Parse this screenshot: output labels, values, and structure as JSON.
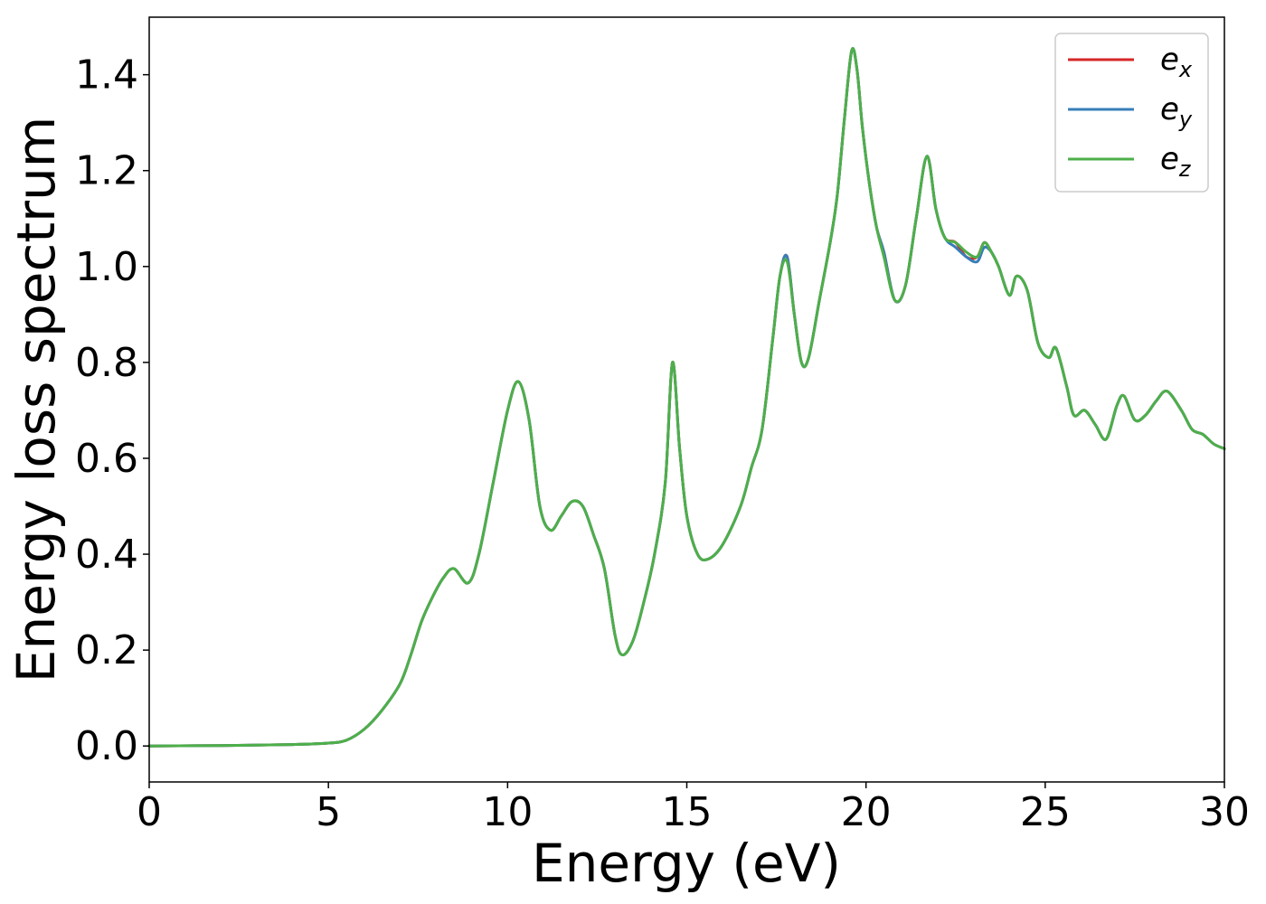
{
  "chart_data": {
    "type": "line",
    "xlabel": "Energy (eV)",
    "ylabel": "Energy loss spectrum",
    "xlim": [
      0,
      30
    ],
    "ylim": [
      -0.075,
      1.52
    ],
    "xticks": [
      0,
      5,
      10,
      15,
      20,
      25,
      30
    ],
    "xtick_labels": [
      "0",
      "5",
      "10",
      "15",
      "20",
      "25",
      "30"
    ],
    "yticks": [
      0.0,
      0.2,
      0.4,
      0.6,
      0.8,
      1.0,
      1.2,
      1.4
    ],
    "ytick_labels": [
      "0.0",
      "0.2",
      "0.4",
      "0.6",
      "0.8",
      "1.0",
      "1.2",
      "1.4"
    ],
    "grid": false,
    "legend_position": "top-right",
    "series": [
      {
        "name": "e_x",
        "legend": {
          "base": "e",
          "sub": "x"
        },
        "color": "#d62728",
        "x": [
          0,
          2,
          4,
          5,
          5.5,
          6,
          6.5,
          7,
          7.3,
          7.6,
          7.9,
          8.2,
          8.5,
          8.9,
          9.2,
          9.6,
          10.0,
          10.3,
          10.6,
          10.9,
          11.2,
          11.5,
          11.8,
          12.1,
          12.4,
          12.7,
          13.0,
          13.2,
          13.5,
          13.8,
          14.1,
          14.4,
          14.6,
          14.8,
          15.0,
          15.3,
          15.6,
          16.0,
          16.5,
          16.8,
          17.1,
          17.4,
          17.6,
          17.8,
          18.0,
          18.2,
          18.4,
          18.7,
          19.0,
          19.2,
          19.4,
          19.6,
          19.75,
          19.9,
          20.1,
          20.3,
          20.5,
          20.8,
          21.1,
          21.4,
          21.7,
          21.95,
          22.2,
          22.5,
          22.8,
          23.1,
          23.3,
          23.5,
          23.7,
          24.0,
          24.2,
          24.5,
          24.8,
          25.1,
          25.3,
          25.6,
          25.8,
          26.1,
          26.4,
          26.7,
          27.0,
          27.2,
          27.5,
          27.8,
          28.1,
          28.4,
          28.8,
          29.1,
          29.4,
          29.7,
          30.0
        ],
        "y": [
          0.0,
          0.001,
          0.003,
          0.006,
          0.012,
          0.035,
          0.075,
          0.13,
          0.19,
          0.26,
          0.31,
          0.35,
          0.37,
          0.34,
          0.4,
          0.55,
          0.7,
          0.76,
          0.68,
          0.5,
          0.45,
          0.48,
          0.51,
          0.5,
          0.44,
          0.37,
          0.23,
          0.19,
          0.22,
          0.3,
          0.4,
          0.55,
          0.8,
          0.62,
          0.48,
          0.4,
          0.39,
          0.42,
          0.5,
          0.58,
          0.66,
          0.85,
          0.98,
          1.02,
          0.9,
          0.8,
          0.81,
          0.93,
          1.05,
          1.15,
          1.31,
          1.45,
          1.41,
          1.29,
          1.17,
          1.08,
          1.03,
          0.93,
          0.96,
          1.1,
          1.23,
          1.12,
          1.06,
          1.05,
          1.02,
          1.02,
          1.05,
          1.03,
          1.0,
          0.94,
          0.98,
          0.95,
          0.84,
          0.81,
          0.83,
          0.75,
          0.69,
          0.7,
          0.67,
          0.64,
          0.71,
          0.73,
          0.68,
          0.69,
          0.72,
          0.74,
          0.7,
          0.66,
          0.65,
          0.63,
          0.62
        ]
      },
      {
        "name": "e_y",
        "legend": {
          "base": "e",
          "sub": "y"
        },
        "color": "#377eb8",
        "x": [
          0,
          2,
          4,
          5,
          5.5,
          6,
          6.5,
          7,
          7.3,
          7.6,
          7.9,
          8.2,
          8.5,
          8.9,
          9.2,
          9.6,
          10.0,
          10.3,
          10.6,
          10.9,
          11.2,
          11.5,
          11.8,
          12.1,
          12.4,
          12.7,
          13.0,
          13.2,
          13.5,
          13.8,
          14.1,
          14.4,
          14.6,
          14.8,
          15.0,
          15.3,
          15.6,
          16.0,
          16.5,
          16.8,
          17.1,
          17.4,
          17.6,
          17.8,
          18.0,
          18.2,
          18.4,
          18.7,
          19.0,
          19.2,
          19.4,
          19.6,
          19.75,
          19.9,
          20.1,
          20.3,
          20.5,
          20.8,
          21.1,
          21.4,
          21.7,
          21.95,
          22.2,
          22.5,
          22.8,
          23.1,
          23.3,
          23.5,
          23.7,
          24.0,
          24.2,
          24.5,
          24.8,
          25.1,
          25.3,
          25.6,
          25.8,
          26.1,
          26.4,
          26.7,
          27.0,
          27.2,
          27.5,
          27.8,
          28.1,
          28.4,
          28.8,
          29.1,
          29.4,
          29.7,
          30.0
        ],
        "y": [
          0.0,
          0.001,
          0.003,
          0.006,
          0.012,
          0.035,
          0.075,
          0.13,
          0.19,
          0.26,
          0.31,
          0.35,
          0.37,
          0.34,
          0.4,
          0.55,
          0.7,
          0.76,
          0.68,
          0.5,
          0.45,
          0.48,
          0.51,
          0.5,
          0.44,
          0.37,
          0.23,
          0.19,
          0.22,
          0.3,
          0.4,
          0.55,
          0.8,
          0.62,
          0.48,
          0.4,
          0.39,
          0.42,
          0.5,
          0.58,
          0.66,
          0.85,
          0.98,
          1.02,
          0.9,
          0.8,
          0.81,
          0.93,
          1.05,
          1.15,
          1.31,
          1.45,
          1.41,
          1.29,
          1.17,
          1.08,
          1.03,
          0.93,
          0.96,
          1.1,
          1.23,
          1.12,
          1.06,
          1.04,
          1.02,
          1.01,
          1.04,
          1.03,
          1.0,
          0.94,
          0.98,
          0.95,
          0.84,
          0.81,
          0.83,
          0.75,
          0.69,
          0.7,
          0.67,
          0.64,
          0.71,
          0.73,
          0.68,
          0.69,
          0.72,
          0.74,
          0.7,
          0.66,
          0.65,
          0.63,
          0.62
        ]
      },
      {
        "name": "e_z",
        "legend": {
          "base": "e",
          "sub": "z"
        },
        "color": "#4daf4a",
        "x": [
          0,
          2,
          4,
          5,
          5.5,
          6,
          6.5,
          7,
          7.3,
          7.6,
          7.9,
          8.2,
          8.5,
          8.9,
          9.2,
          9.6,
          10.0,
          10.3,
          10.6,
          10.9,
          11.2,
          11.5,
          11.8,
          12.1,
          12.4,
          12.7,
          13.0,
          13.2,
          13.5,
          13.8,
          14.1,
          14.4,
          14.6,
          14.8,
          15.0,
          15.3,
          15.6,
          16.0,
          16.5,
          16.8,
          17.1,
          17.4,
          17.6,
          17.8,
          18.0,
          18.2,
          18.4,
          18.7,
          19.0,
          19.2,
          19.4,
          19.6,
          19.75,
          19.9,
          20.1,
          20.3,
          20.5,
          20.8,
          21.1,
          21.4,
          21.7,
          21.95,
          22.2,
          22.5,
          22.8,
          23.1,
          23.3,
          23.5,
          23.7,
          24.0,
          24.2,
          24.5,
          24.8,
          25.1,
          25.3,
          25.6,
          25.8,
          26.1,
          26.4,
          26.7,
          27.0,
          27.2,
          27.5,
          27.8,
          28.1,
          28.4,
          28.8,
          29.1,
          29.4,
          29.7,
          30.0
        ],
        "y": [
          0.0,
          0.001,
          0.003,
          0.006,
          0.012,
          0.035,
          0.075,
          0.13,
          0.19,
          0.26,
          0.31,
          0.35,
          0.37,
          0.34,
          0.4,
          0.55,
          0.7,
          0.76,
          0.68,
          0.5,
          0.45,
          0.48,
          0.51,
          0.5,
          0.44,
          0.37,
          0.23,
          0.19,
          0.22,
          0.3,
          0.4,
          0.55,
          0.8,
          0.62,
          0.48,
          0.4,
          0.39,
          0.42,
          0.5,
          0.58,
          0.66,
          0.85,
          0.98,
          1.01,
          0.9,
          0.8,
          0.81,
          0.93,
          1.05,
          1.15,
          1.31,
          1.45,
          1.41,
          1.29,
          1.17,
          1.08,
          1.02,
          0.93,
          0.96,
          1.1,
          1.23,
          1.12,
          1.06,
          1.05,
          1.03,
          1.02,
          1.05,
          1.03,
          1.0,
          0.94,
          0.98,
          0.95,
          0.84,
          0.81,
          0.83,
          0.75,
          0.69,
          0.7,
          0.67,
          0.64,
          0.71,
          0.73,
          0.68,
          0.69,
          0.72,
          0.74,
          0.7,
          0.66,
          0.65,
          0.63,
          0.62
        ]
      }
    ]
  }
}
